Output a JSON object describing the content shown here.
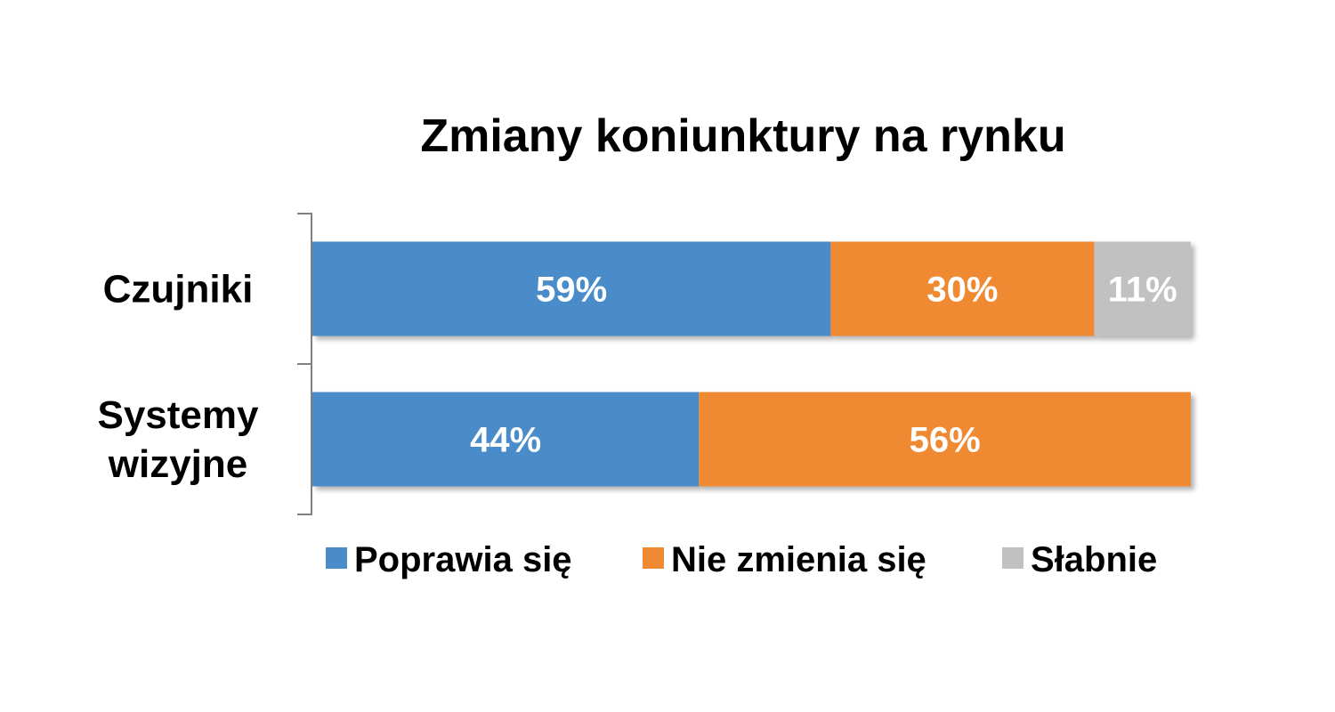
{
  "chart_data": {
    "type": "bar",
    "orientation": "horizontal",
    "stacked": "percent",
    "title": "Zmiany koniunktury na rynku",
    "categories": [
      [
        "Czujniki"
      ],
      [
        "Systemy",
        "wizyjne"
      ]
    ],
    "series": [
      {
        "name": "Poprawia się",
        "color": "#4a8cc9",
        "values": [
          59,
          44
        ],
        "labels": [
          "59%",
          "44%"
        ]
      },
      {
        "name": "Nie zmienia się",
        "color": "#ef8a32",
        "values": [
          30,
          56
        ],
        "labels": [
          "30%",
          "56%"
        ]
      },
      {
        "name": "Słabnie",
        "color": "#c1c1c1",
        "values": [
          11,
          0
        ],
        "labels": [
          "11%",
          ""
        ]
      }
    ],
    "xlim": [
      0,
      100
    ],
    "grid": false,
    "legend": "bottom"
  }
}
